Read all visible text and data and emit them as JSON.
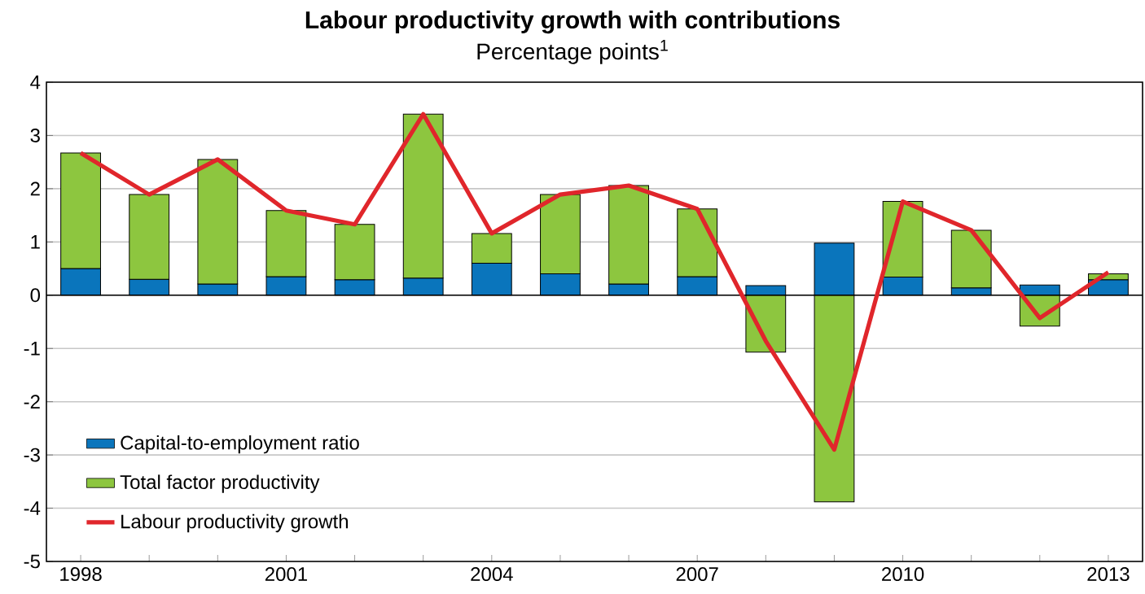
{
  "chart_data": {
    "type": "bar",
    "title": "Labour productivity growth with contributions",
    "subtitle": "Percentage points$^{1}$",
    "categories": [
      "1998",
      null,
      null,
      "2001",
      null,
      null,
      "2004",
      null,
      null,
      "2007",
      null,
      null,
      "2010",
      null,
      null,
      "2013"
    ],
    "stacked": true,
    "series": [
      {
        "name": "Capital-to-employment ratio",
        "color": "#0a75bc",
        "values": [
          0.5,
          0.3,
          0.21,
          0.35,
          0.29,
          0.32,
          0.6,
          0.4,
          0.21,
          0.35,
          0.18,
          0.98,
          0.34,
          0.14,
          0.19,
          0.29
        ]
      },
      {
        "name": "Total factor productivity",
        "color": "#8dc63f",
        "values": [
          2.17,
          1.59,
          2.34,
          1.24,
          1.04,
          3.08,
          0.56,
          1.49,
          1.85,
          1.27,
          -1.07,
          -3.88,
          1.42,
          1.08,
          -0.58,
          0.11
        ]
      },
      {
        "name": "Labour productivity growth",
        "type": "line",
        "color": "#e0262b",
        "values": [
          2.67,
          1.89,
          2.55,
          1.59,
          1.33,
          3.4,
          1.16,
          1.89,
          2.06,
          1.62,
          -0.86,
          -2.9,
          1.76,
          1.22,
          -0.43,
          0.43
        ]
      }
    ],
    "ylim": [
      -5,
      4
    ],
    "yticks": [
      -5,
      -4,
      -3,
      -2,
      -1,
      0,
      1,
      2,
      3,
      4
    ],
    "grid": "y",
    "legend": "bottom left"
  }
}
